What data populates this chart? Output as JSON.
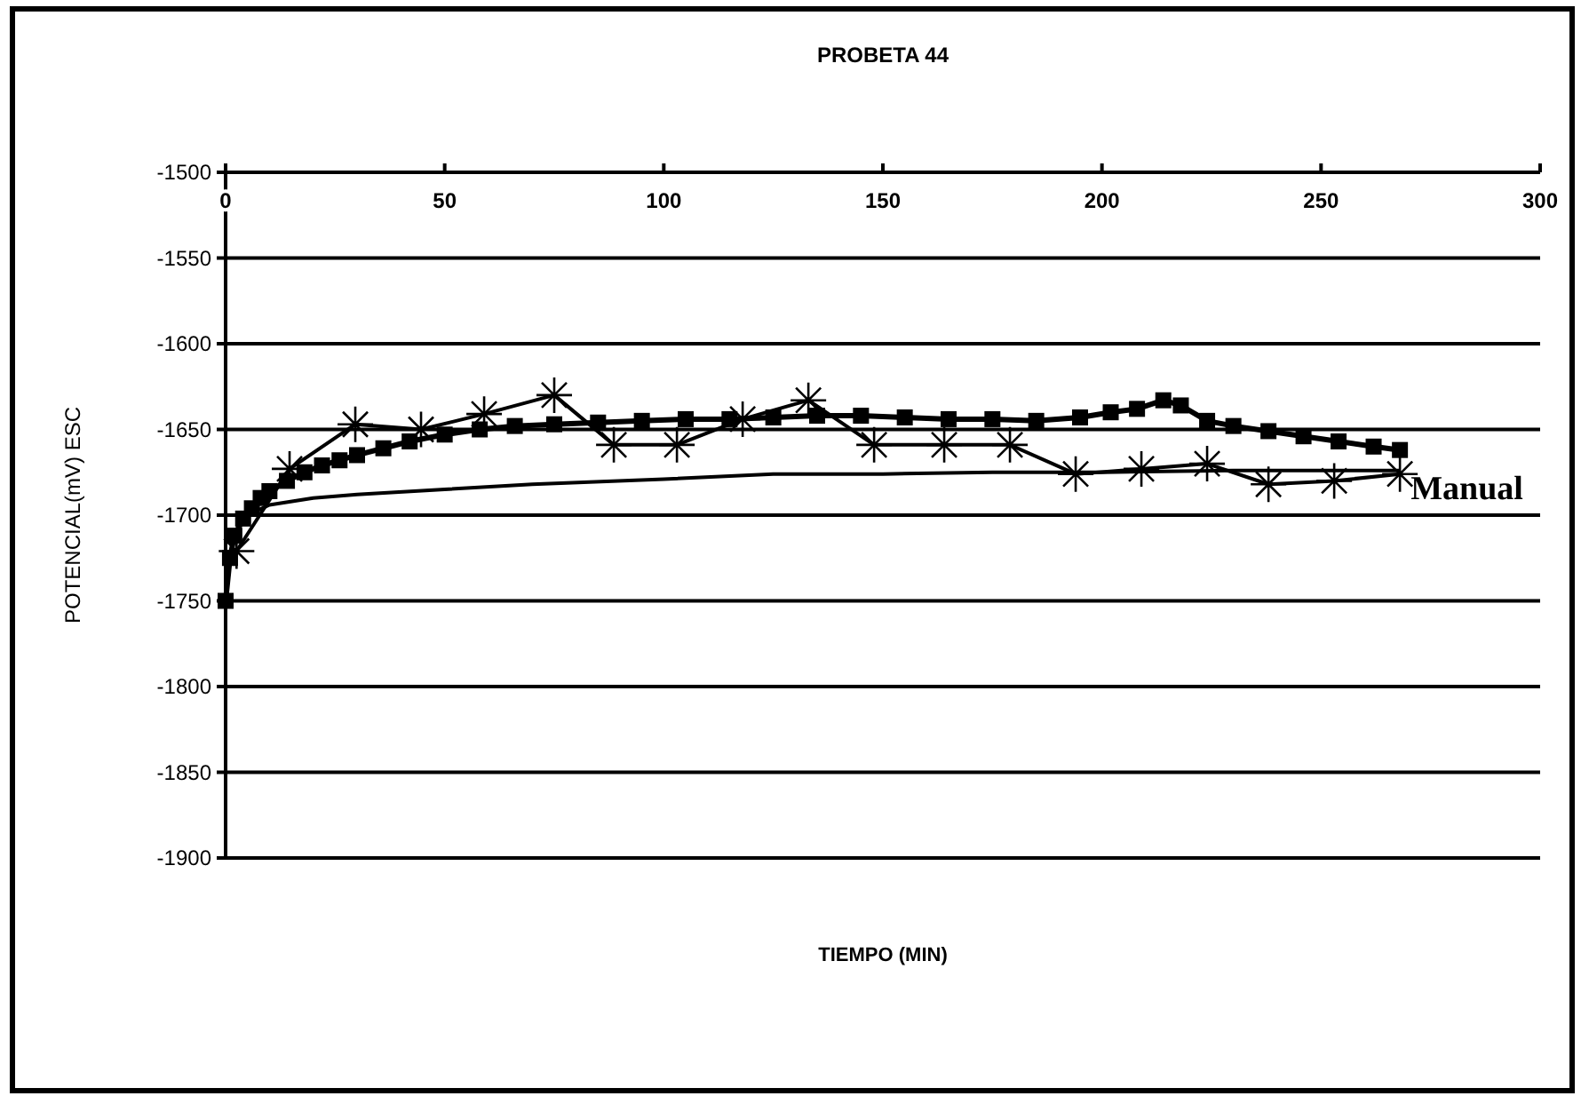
{
  "chart_data": {
    "type": "line",
    "title": "PROBETA 44",
    "xlabel": "TIEMPO (MIN)",
    "ylabel": "POTENCIAL(mV) ESC",
    "xlim": [
      0,
      300
    ],
    "xticks": [
      0,
      50,
      100,
      150,
      200,
      250,
      300
    ],
    "ylim": [
      -1900,
      -1500
    ],
    "yticks": [
      -1900,
      -1850,
      -1800,
      -1750,
      -1700,
      -1650,
      -1600,
      -1550,
      -1500
    ],
    "grid": "y",
    "series": [
      {
        "color": "#000000",
        "marker": "square",
        "x": [
          0,
          1,
          2,
          4,
          6,
          8,
          10,
          14,
          18,
          22,
          26,
          30,
          36,
          42,
          50,
          58,
          66,
          75,
          85,
          95,
          105,
          115,
          125,
          135,
          145,
          155,
          165,
          175,
          185,
          195,
          202,
          208,
          214,
          218,
          224,
          230,
          238,
          246,
          254,
          262,
          268
        ],
        "values": [
          -1750,
          -1725,
          -1712,
          -1702,
          -1696,
          -1690,
          -1686,
          -1680,
          -1675,
          -1671,
          -1668,
          -1665,
          -1661,
          -1657,
          -1653,
          -1650,
          -1648,
          -1647,
          -1646,
          -1645,
          -1644,
          -1644,
          -1643,
          -1642,
          -1642,
          -1643,
          -1644,
          -1644,
          -1645,
          -1643,
          -1640,
          -1638,
          -1633,
          -1636,
          -1645,
          -1648,
          -1651,
          -1654,
          -1657,
          -1660,
          -1662
        ]
      },
      {
        "name": "Manual",
        "color": "#000000",
        "marker": "none",
        "x": [
          2,
          5,
          10,
          20,
          30,
          50,
          70,
          100,
          125,
          150,
          175,
          200,
          230,
          268
        ],
        "values": [
          -1712,
          -1700,
          -1694,
          -1690,
          -1688,
          -1685,
          -1682,
          -1679,
          -1676,
          -1676,
          -1675,
          -1675,
          -1674,
          -1674
        ]
      },
      {
        "color": "#000000",
        "marker": "cross",
        "x": [
          2.5,
          14.6,
          29.6,
          44.6,
          59,
          75,
          88.6,
          103,
          118,
          133,
          148,
          164,
          179,
          194,
          209,
          224,
          238,
          253,
          268
        ],
        "values": [
          -1721,
          -1673,
          -1647,
          -1650,
          -1641,
          -1630,
          -1659,
          -1659,
          -1644,
          -1633,
          -1659,
          -1659,
          -1659,
          -1676,
          -1673,
          -1670,
          -1682,
          -1680,
          -1676
        ]
      }
    ]
  }
}
